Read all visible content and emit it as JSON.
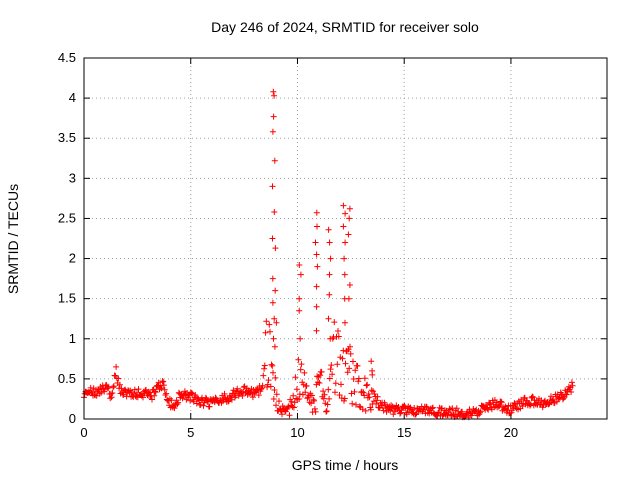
{
  "chart_data": {
    "type": "scatter",
    "title": "Day 246 of 2024, SRMTID for receiver solo",
    "xlabel": "GPS time / hours",
    "ylabel": "SRMTID / TECUs",
    "xlim": [
      0,
      24.5
    ],
    "ylim": [
      0,
      4.5
    ],
    "xticks": [
      0,
      5,
      10,
      15,
      20
    ],
    "xtick_labels": [
      "0",
      "5",
      "10",
      "15",
      "20"
    ],
    "yticks": [
      0,
      0.5,
      1,
      1.5,
      2,
      2.5,
      3,
      3.5,
      4,
      4.5
    ],
    "ytick_labels": [
      "0",
      "0.5",
      "1",
      "1.5",
      "2",
      "2.5",
      "3",
      "3.5",
      "4",
      "4.5"
    ],
    "grid": true,
    "marker": "+",
    "marker_color": "#ff0000",
    "series": [
      {
        "name": "SRMTID",
        "profile_x": [
          0.0,
          0.3,
          0.6,
          1.0,
          1.3,
          1.5,
          1.7,
          2.2,
          2.7,
          3.2,
          3.5,
          3.7,
          3.9,
          4.2,
          4.5,
          5.0,
          5.5,
          6.0,
          6.5,
          7.0,
          7.5,
          8.0,
          8.3,
          8.6,
          8.8,
          9.0,
          9.2,
          9.5,
          9.8,
          10.0,
          10.2,
          10.4,
          10.6,
          10.8,
          11.0,
          11.2,
          11.4,
          11.6,
          11.8,
          12.0,
          12.2,
          12.4,
          12.6,
          12.8,
          13.0,
          13.3,
          13.6,
          14.0,
          14.5,
          15.0,
          15.5,
          16.0,
          17.0,
          18.0,
          18.5,
          19.0,
          19.3,
          19.6,
          20.0,
          20.5,
          21.0,
          21.5,
          22.0,
          22.5,
          22.9
        ],
        "profile_y": [
          0.28,
          0.35,
          0.3,
          0.4,
          0.28,
          0.6,
          0.35,
          0.3,
          0.32,
          0.3,
          0.4,
          0.45,
          0.25,
          0.15,
          0.3,
          0.28,
          0.22,
          0.2,
          0.25,
          0.3,
          0.35,
          0.3,
          0.38,
          0.8,
          0.5,
          0.3,
          0.1,
          0.08,
          0.2,
          0.6,
          0.4,
          0.3,
          0.2,
          0.15,
          0.5,
          0.25,
          0.15,
          0.55,
          0.9,
          0.6,
          0.45,
          0.6,
          0.5,
          0.45,
          0.35,
          0.25,
          0.2,
          0.15,
          0.12,
          0.12,
          0.1,
          0.1,
          0.08,
          0.07,
          0.1,
          0.15,
          0.2,
          0.15,
          0.12,
          0.2,
          0.22,
          0.2,
          0.25,
          0.3,
          0.42
        ],
        "peaks": [
          {
            "x": 8.88,
            "y": [
              1.0,
              1.25,
              1.45,
              1.75,
              2.25,
              2.58,
              2.9,
              3.22,
              3.58,
              3.77,
              4.03,
              4.08
            ]
          },
          {
            "x": 9.0,
            "y": [
              0.9,
              1.2,
              1.6,
              2.13
            ]
          },
          {
            "x": 10.1,
            "y": [
              1.0,
              1.35,
              1.5,
              1.8,
              1.92
            ]
          },
          {
            "x": 10.9,
            "y": [
              1.1,
              1.4,
              1.65,
              1.9,
              2.05,
              2.2,
              2.4,
              2.57
            ]
          },
          {
            "x": 11.5,
            "y": [
              1.0,
              1.25,
              1.55,
              1.8,
              2.0,
              2.2,
              2.36
            ]
          },
          {
            "x": 12.2,
            "y": [
              1.2,
              1.5,
              1.8,
              2.0,
              2.2,
              2.4,
              2.56,
              2.66
            ]
          },
          {
            "x": 12.4,
            "y": [
              1.5,
              1.67,
              2.3,
              2.5,
              2.62
            ]
          },
          {
            "x": 13.5,
            "y": [
              0.55,
              0.6,
              0.72
            ]
          }
        ]
      }
    ]
  }
}
